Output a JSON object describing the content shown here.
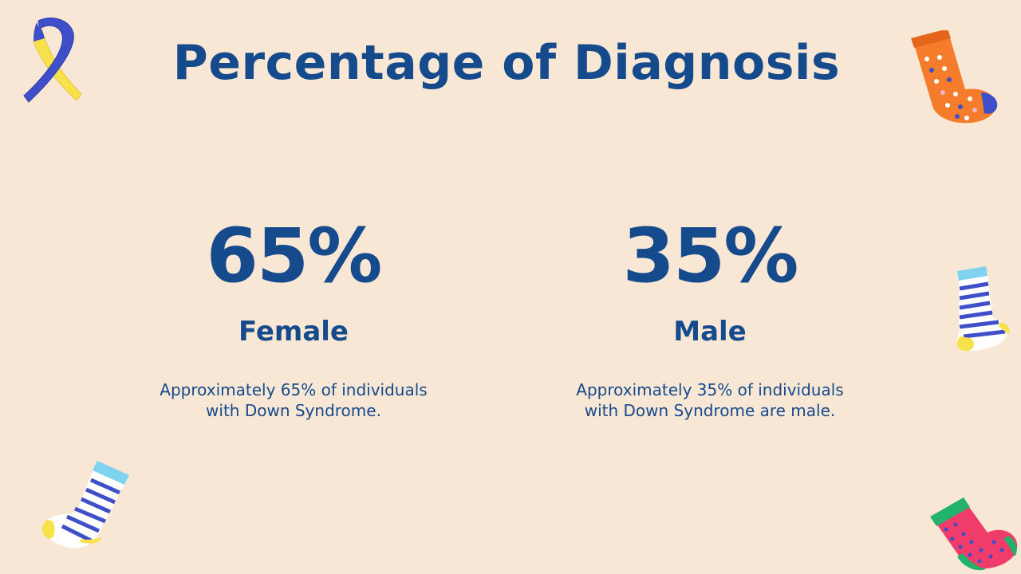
{
  "slide": {
    "title": "Percentage of Diagnosis",
    "stats": [
      {
        "value": "65%",
        "label": "Female",
        "description": "Approximately 65% of individuals with Down Syndrome."
      },
      {
        "value": "35%",
        "label": "Male",
        "description": "Approximately 35% of individuals with Down Syndrome are male."
      }
    ]
  },
  "decorations": [
    {
      "icon": "awareness-ribbon-icon",
      "colors": [
        "#3f4fc9",
        "#f7e24b"
      ]
    },
    {
      "icon": "polka-dot-sock-icon",
      "colors": [
        "#f47c2a",
        "#3f4fc9",
        "#ffffff"
      ]
    },
    {
      "icon": "striped-sock-icon",
      "colors": [
        "#3f4fc9",
        "#7fd3ef",
        "#f7e24b"
      ]
    },
    {
      "icon": "striped-sock-icon",
      "colors": [
        "#3f4fc9",
        "#7fd3ef",
        "#f7e24b"
      ]
    },
    {
      "icon": "polka-dot-sock-icon",
      "colors": [
        "#ef3c6b",
        "#21b36b",
        "#3f4fc9"
      ]
    }
  ],
  "theme": {
    "background": "#f8e7d4",
    "text": "#154a8c"
  }
}
